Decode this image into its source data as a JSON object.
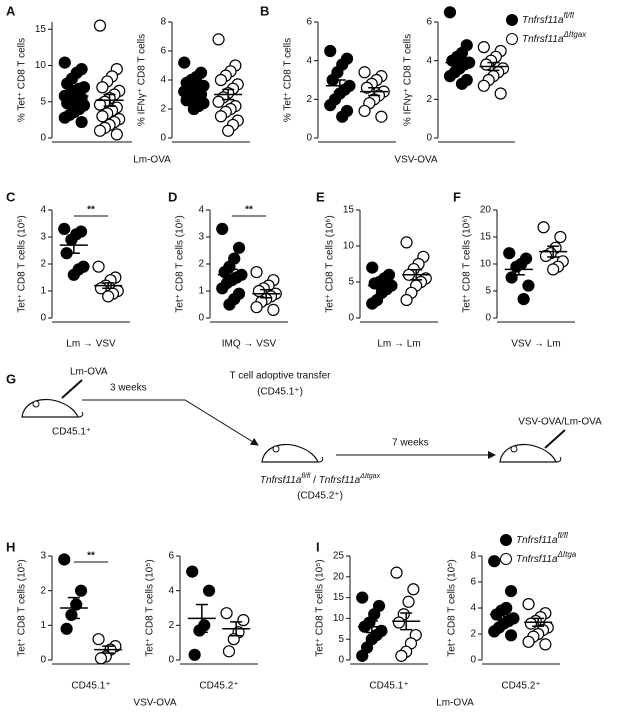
{
  "panels": [
    "A",
    "B",
    "C",
    "D",
    "E",
    "F",
    "G",
    "H",
    "I"
  ],
  "captions": [
    "Lm-OVA",
    "VSV-OVA",
    "VSV-OVA",
    "Lm-OVA"
  ],
  "legends": [
    {
      "entries": [
        {
          "gene": "Tnfrsf11a",
          "sup": "fl/fl"
        },
        {
          "gene": "Tnfrsf11a",
          "sup": "ΔItgax"
        }
      ]
    },
    {
      "entries": [
        {
          "gene": "Tnfrsf11a",
          "sup": "fl/fl"
        },
        {
          "gene": "Tnfrsf11a",
          "sup": "ΔItga"
        }
      ]
    }
  ],
  "chart_data": [
    {
      "type": "dot",
      "ylabel": "% Tet⁺ CD8 T cells",
      "ylim": [
        0,
        16
      ],
      "yticks": [
        0,
        5,
        10,
        15
      ],
      "series": [
        {
          "color": "#000000",
          "values": [
            10.4,
            9.5,
            9,
            8.2,
            7.5,
            7,
            6.8,
            6.5,
            6,
            5.8,
            5.5,
            5.2,
            5,
            4.8,
            4.5,
            4,
            3.6,
            3.2,
            2.8,
            2.2
          ],
          "mean": 5.8,
          "sem": 0.5
        },
        {
          "color": "#ffffff",
          "values": [
            15.5,
            9.5,
            8.5,
            7.8,
            7,
            6.5,
            6,
            5.5,
            5,
            4.6,
            4.2,
            3.8,
            3.4,
            3,
            2.6,
            2.2,
            1.8,
            1.4,
            1,
            0.5
          ],
          "mean": 5.2,
          "sem": 0.8
        }
      ]
    },
    {
      "type": "dot",
      "ylabel": "% IFNγ⁺ CD8 T cells",
      "ylim": [
        0,
        8
      ],
      "yticks": [
        0,
        2,
        4,
        6,
        8
      ],
      "series": [
        {
          "color": "#000000",
          "values": [
            5.2,
            4.5,
            4.2,
            4,
            3.8,
            3.6,
            3.5,
            3.4,
            3.3,
            3.2,
            3,
            2.9,
            2.8,
            2.6,
            2.4,
            2.2,
            2
          ],
          "mean": 3.4,
          "sem": 0.2
        },
        {
          "color": "#ffffff",
          "values": [
            6.8,
            5,
            4.6,
            4.3,
            4,
            3.7,
            3.4,
            3.1,
            2.8,
            2.5,
            2.2,
            2,
            1.8,
            1.5,
            1.2,
            0.9,
            0.5
          ],
          "mean": 3,
          "sem": 0.35
        }
      ]
    },
    {
      "type": "dot",
      "ylabel": "% Tet⁺ CD8 T cells",
      "ylim": [
        0,
        6
      ],
      "yticks": [
        0,
        2,
        4,
        6
      ],
      "series": [
        {
          "color": "#000000",
          "values": [
            4.5,
            4.1,
            3.8,
            3.4,
            3,
            2.7,
            2.5,
            2.3,
            2,
            1.7,
            1.4,
            1.1
          ],
          "mean": 2.7,
          "sem": 0.3
        },
        {
          "color": "#ffffff",
          "values": [
            3.4,
            3.2,
            3,
            2.8,
            2.6,
            2.4,
            2.2,
            2,
            1.8,
            1.4,
            1.1
          ],
          "mean": 2.4,
          "sem": 0.2
        }
      ]
    },
    {
      "type": "dot",
      "ylabel": "% IFNγ⁺ CD8 T cells",
      "ylim": [
        0,
        6
      ],
      "yticks": [
        0,
        2,
        4,
        6
      ],
      "series": [
        {
          "color": "#000000",
          "values": [
            6.5,
            4.8,
            4.4,
            4.2,
            4,
            3.9,
            3.8,
            3.6,
            3.4,
            3.2,
            3,
            2.8
          ],
          "mean": 3.9,
          "sem": 0.3
        },
        {
          "color": "#ffffff",
          "values": [
            4.7,
            4.5,
            4.2,
            4,
            3.8,
            3.6,
            3.4,
            3.2,
            3,
            2.7,
            2.3
          ],
          "mean": 3.7,
          "sem": 0.2
        }
      ]
    },
    {
      "type": "dot",
      "ylabel": "Tet⁺ CD8 T cells (10⁶)",
      "ylim": [
        0,
        4
      ],
      "yticks": [
        0,
        1,
        2,
        3,
        4
      ],
      "xlabel": "Lm → VSV",
      "annotation": "**",
      "series": [
        {
          "color": "#000000",
          "values": [
            3.3,
            3.2,
            3.1,
            2.9,
            2.4,
            1.9,
            1.8,
            1.6
          ],
          "mean": 2.7,
          "sem": 0.3
        },
        {
          "color": "#ffffff",
          "values": [
            1.9,
            1.5,
            1.4,
            1.2,
            1.1,
            1,
            0.9,
            0.8
          ],
          "mean": 1.2,
          "sem": 0.1
        }
      ]
    },
    {
      "type": "dot",
      "ylabel": "Tet⁺ CD8 T cells (10⁶)",
      "ylim": [
        0,
        4
      ],
      "yticks": [
        0,
        1,
        2,
        3,
        4
      ],
      "xlabel": "IMQ → VSV",
      "annotation": "**",
      "series": [
        {
          "color": "#000000",
          "values": [
            3.3,
            2.6,
            2.2,
            1.9,
            1.7,
            1.6,
            1.5,
            1.4,
            1.3,
            1.1,
            0.9,
            0.7,
            0.5
          ],
          "mean": 1.6,
          "sem": 0.2
        },
        {
          "color": "#ffffff",
          "values": [
            1.7,
            1.4,
            1.2,
            1.1,
            1,
            0.9,
            0.8,
            0.7,
            0.6,
            0.4,
            0.3
          ],
          "mean": 0.9,
          "sem": 0.15
        }
      ]
    },
    {
      "type": "dot",
      "ylabel": "Tet⁺ CD8 T cells (10⁶)",
      "ylim": [
        0,
        15
      ],
      "yticks": [
        0,
        5,
        10,
        15
      ],
      "xlabel": "Lm → Lm",
      "series": [
        {
          "color": "#000000",
          "values": [
            7,
            6,
            5.5,
            5,
            4.8,
            4.5,
            4,
            3.5,
            2.5,
            2
          ],
          "mean": 4.5,
          "sem": 0.5
        },
        {
          "color": "#ffffff",
          "values": [
            10.5,
            8.5,
            7.5,
            6.8,
            6,
            5.5,
            5,
            4.5,
            3.5,
            2.5
          ],
          "mean": 6,
          "sem": 0.7
        }
      ]
    },
    {
      "type": "dot",
      "ylabel": "Tet⁺ CD8 T cells (10⁶)",
      "ylim": [
        0,
        20
      ],
      "yticks": [
        0,
        5,
        10,
        15,
        20
      ],
      "xlabel": "VSV → Lm",
      "series": [
        {
          "color": "#000000",
          "values": [
            12,
            11,
            10,
            9.5,
            7.5,
            6,
            3.5
          ],
          "mean": 9,
          "sem": 1
        },
        {
          "color": "#ffffff",
          "values": [
            16.8,
            15,
            13,
            12,
            11.5,
            10.5,
            9.5,
            9
          ],
          "mean": 12.3,
          "sem": 1
        }
      ]
    },
    {
      "type": "dot",
      "ylabel": "Tet⁺ CD8 T cells (10⁵)",
      "ylim": [
        0,
        3
      ],
      "yticks": [
        0,
        1,
        2,
        3
      ],
      "xlabel": "CD45.1⁺",
      "annotation": "**",
      "series": [
        {
          "color": "#000000",
          "values": [
            2.9,
            2,
            1.6,
            1.3,
            0.9
          ],
          "mean": 1.5,
          "sem": 0.3
        },
        {
          "color": "#ffffff",
          "values": [
            0.6,
            0.4,
            0.3,
            0.1,
            0.05
          ],
          "mean": 0.3,
          "sem": 0.1
        }
      ]
    },
    {
      "type": "dot",
      "ylabel": "Tet⁺ CD8 T cells (10⁵)",
      "ylim": [
        0,
        6
      ],
      "yticks": [
        0,
        2,
        4,
        6
      ],
      "xlabel": "CD45.2⁺",
      "series": [
        {
          "color": "#000000",
          "values": [
            5.1,
            4,
            2,
            1.7,
            0.3
          ],
          "mean": 2.4,
          "sem": 0.8
        },
        {
          "color": "#ffffff",
          "values": [
            2.7,
            2.3,
            1.6,
            1.2,
            0.5
          ],
          "mean": 1.8,
          "sem": 0.4
        }
      ]
    },
    {
      "type": "dot",
      "ylabel": "Tet⁺ CD8 T cells (10⁵)",
      "ylim": [
        0,
        25
      ],
      "yticks": [
        0,
        5,
        10,
        15,
        20,
        25
      ],
      "xlabel": "CD45.1⁺",
      "series": [
        {
          "color": "#000000",
          "values": [
            15,
            13,
            11,
            9,
            8,
            7,
            6,
            5,
            3,
            1
          ],
          "mean": 8,
          "sem": 1.4
        },
        {
          "color": "#ffffff",
          "values": [
            21,
            17,
            14,
            11,
            9,
            6,
            4,
            2,
            1
          ],
          "mean": 9.3,
          "sem": 2
        }
      ]
    },
    {
      "type": "dot",
      "ylabel": "Tet⁺ CD8 T cells (10⁵)",
      "ylim": [
        0,
        8
      ],
      "yticks": [
        0,
        2,
        4,
        6,
        8
      ],
      "xlabel": "CD45.2⁺",
      "series": [
        {
          "color": "#000000",
          "values": [
            7.6,
            5.3,
            4,
            3.8,
            3.5,
            3.2,
            3,
            2.8,
            2.5,
            2.2,
            1.9
          ],
          "mean": 3.5,
          "sem": 0.5
        },
        {
          "color": "#ffffff",
          "values": [
            4.3,
            3.6,
            3.3,
            3,
            2.8,
            2.5,
            2.3,
            2,
            1.8,
            1.4,
            1.2
          ],
          "mean": 2.9,
          "sem": 0.3
        }
      ]
    }
  ],
  "diagram": {
    "injection": "Lm-OVA",
    "interval1": "3 weeks",
    "donor": "CD45.1⁺",
    "transfer": "T cell adoptive transfer",
    "transfer_cells": "(CD45.1⁺)",
    "interval2": "7 weeks",
    "recipient": {
      "gene1": "Tnfrsf11a",
      "sup1": "fl/fl",
      "separator": " / ",
      "gene2": "Tnfrsf11a",
      "sup2": "ΔItgax"
    },
    "recipient_marker": "(CD45.2⁺)",
    "challenge": "VSV-OVA/Lm-OVA"
  }
}
